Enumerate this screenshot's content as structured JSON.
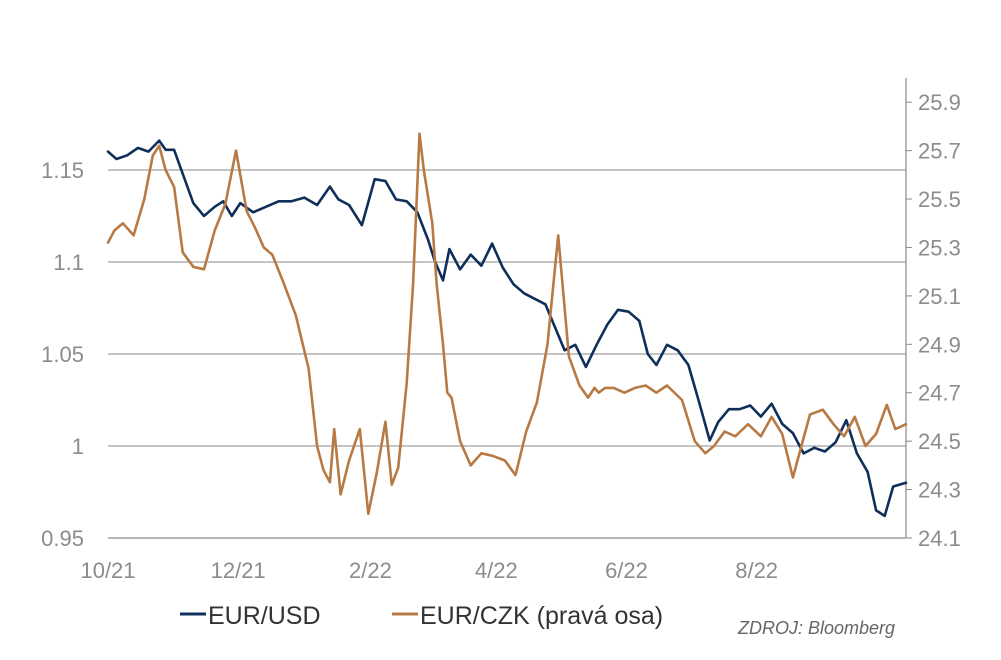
{
  "chart_data": {
    "type": "line",
    "title": "",
    "xlabel": "",
    "ylabel": "",
    "grid": "horizontal",
    "legend_placement": "bottom",
    "source": "ZDROJ: Bloomberg",
    "x_ticks": [
      "10/21",
      "12/21",
      "2/22",
      "4/22",
      "6/22",
      "8/22"
    ],
    "x_range": [
      "2021-10-01",
      "2022-10-10"
    ],
    "left_axis": {
      "ylim": [
        0.95,
        1.2
      ],
      "ticks": [
        0.95,
        1.0,
        1.05,
        1.1,
        1.15
      ],
      "tick_labels": [
        "0.95",
        "1",
        "1.05",
        "1.1",
        "1.15"
      ]
    },
    "right_axis": {
      "ylim": [
        24.1,
        26.0
      ],
      "ticks": [
        24.1,
        24.3,
        24.5,
        24.7,
        24.9,
        25.1,
        25.3,
        25.5,
        25.7,
        25.9
      ],
      "tick_labels": [
        "24.1",
        "24.3",
        "24.5",
        "24.7",
        "24.9",
        "25.1",
        "25.3",
        "25.5",
        "25.7",
        "25.9"
      ]
    },
    "series": [
      {
        "name": "EUR/USD",
        "axis": "left",
        "color": "#0f2f5a",
        "x": [
          "2021-10-01",
          "2021-10-05",
          "2021-10-10",
          "2021-10-15",
          "2021-10-20",
          "2021-10-25",
          "2021-10-28",
          "2021-11-01",
          "2021-11-05",
          "2021-11-10",
          "2021-11-15",
          "2021-11-20",
          "2021-11-24",
          "2021-11-28",
          "2021-12-02",
          "2021-12-08",
          "2021-12-14",
          "2021-12-20",
          "2021-12-26",
          "2022-01-01",
          "2022-01-07",
          "2022-01-13",
          "2022-01-17",
          "2022-01-22",
          "2022-01-28",
          "2022-02-03",
          "2022-02-08",
          "2022-02-13",
          "2022-02-18",
          "2022-02-23",
          "2022-02-28",
          "2022-03-03",
          "2022-03-07",
          "2022-03-10",
          "2022-03-15",
          "2022-03-20",
          "2022-03-25",
          "2022-03-30",
          "2022-04-04",
          "2022-04-09",
          "2022-04-14",
          "2022-04-19",
          "2022-04-24",
          "2022-04-28",
          "2022-05-03",
          "2022-05-08",
          "2022-05-13",
          "2022-05-18",
          "2022-05-23",
          "2022-05-28",
          "2022-06-02",
          "2022-06-07",
          "2022-06-11",
          "2022-06-15",
          "2022-06-20",
          "2022-06-25",
          "2022-06-30",
          "2022-07-05",
          "2022-07-10",
          "2022-07-14",
          "2022-07-19",
          "2022-07-24",
          "2022-07-29",
          "2022-08-03",
          "2022-08-08",
          "2022-08-13",
          "2022-08-18",
          "2022-08-23",
          "2022-08-28",
          "2022-09-02",
          "2022-09-07",
          "2022-09-12",
          "2022-09-17",
          "2022-09-22",
          "2022-09-26",
          "2022-09-30",
          "2022-10-04",
          "2022-10-10"
        ],
        "values": [
          1.16,
          1.156,
          1.158,
          1.162,
          1.16,
          1.166,
          1.161,
          1.161,
          1.148,
          1.132,
          1.125,
          1.13,
          1.133,
          1.125,
          1.132,
          1.127,
          1.13,
          1.133,
          1.133,
          1.135,
          1.131,
          1.141,
          1.134,
          1.131,
          1.12,
          1.145,
          1.144,
          1.134,
          1.133,
          1.127,
          1.112,
          1.101,
          1.09,
          1.107,
          1.096,
          1.104,
          1.098,
          1.11,
          1.097,
          1.088,
          1.083,
          1.08,
          1.077,
          1.066,
          1.052,
          1.055,
          1.043,
          1.055,
          1.066,
          1.074,
          1.073,
          1.068,
          1.05,
          1.044,
          1.055,
          1.052,
          1.044,
          1.024,
          1.003,
          1.013,
          1.02,
          1.02,
          1.022,
          1.016,
          1.023,
          1.012,
          1.007,
          0.996,
          0.999,
          0.997,
          1.002,
          1.014,
          0.996,
          0.986,
          0.965,
          0.962,
          0.978,
          0.98
        ]
      },
      {
        "name": "EUR/CZK (pravá osa)",
        "axis": "right",
        "color": "#b87a45",
        "x": [
          "2021-10-01",
          "2021-10-04",
          "2021-10-08",
          "2021-10-13",
          "2021-10-18",
          "2021-10-22",
          "2021-10-25",
          "2021-10-28",
          "2021-11-01",
          "2021-11-05",
          "2021-11-10",
          "2021-11-15",
          "2021-11-20",
          "2021-11-25",
          "2021-11-30",
          "2021-12-05",
          "2021-12-09",
          "2021-12-13",
          "2021-12-17",
          "2021-12-22",
          "2021-12-28",
          "2022-01-03",
          "2022-01-07",
          "2022-01-10",
          "2022-01-13",
          "2022-01-15",
          "2022-01-18",
          "2022-01-22",
          "2022-01-27",
          "2022-01-31",
          "2022-02-04",
          "2022-02-08",
          "2022-02-11",
          "2022-02-14",
          "2022-02-18",
          "2022-02-21",
          "2022-02-24",
          "2022-02-26",
          "2022-03-02",
          "2022-03-04",
          "2022-03-07",
          "2022-03-09",
          "2022-03-11",
          "2022-03-15",
          "2022-03-20",
          "2022-03-25",
          "2022-03-30",
          "2022-04-05",
          "2022-04-10",
          "2022-04-15",
          "2022-04-20",
          "2022-04-25",
          "2022-04-30",
          "2022-05-05",
          "2022-05-10",
          "2022-05-14",
          "2022-05-17",
          "2022-05-19",
          "2022-05-22",
          "2022-05-26",
          "2022-05-31",
          "2022-06-05",
          "2022-06-10",
          "2022-06-15",
          "2022-06-20",
          "2022-06-27",
          "2022-07-03",
          "2022-07-08",
          "2022-07-12",
          "2022-07-17",
          "2022-07-22",
          "2022-07-28",
          "2022-08-03",
          "2022-08-08",
          "2022-08-13",
          "2022-08-18",
          "2022-08-22",
          "2022-08-26",
          "2022-09-01",
          "2022-09-06",
          "2022-09-11",
          "2022-09-16",
          "2022-09-21",
          "2022-09-26",
          "2022-10-01",
          "2022-10-05",
          "2022-10-10"
        ],
        "values": [
          25.32,
          25.37,
          25.4,
          25.35,
          25.5,
          25.68,
          25.72,
          25.62,
          25.55,
          25.28,
          25.22,
          25.21,
          25.37,
          25.48,
          25.7,
          25.45,
          25.38,
          25.3,
          25.27,
          25.16,
          25.02,
          24.8,
          24.48,
          24.38,
          24.33,
          24.55,
          24.28,
          24.42,
          24.55,
          24.2,
          24.37,
          24.58,
          24.32,
          24.39,
          24.74,
          25.15,
          25.77,
          25.62,
          25.4,
          25.15,
          24.9,
          24.7,
          24.68,
          24.5,
          24.4,
          24.45,
          24.44,
          24.42,
          24.36,
          24.54,
          24.66,
          24.9,
          25.35,
          24.85,
          24.73,
          24.68,
          24.72,
          24.7,
          24.72,
          24.72,
          24.7,
          24.72,
          24.73,
          24.7,
          24.73,
          24.67,
          24.5,
          24.45,
          24.48,
          24.54,
          24.52,
          24.57,
          24.52,
          24.6,
          24.53,
          24.35,
          24.48,
          24.61,
          24.63,
          24.57,
          24.52,
          24.6,
          24.48,
          24.53,
          24.65,
          24.55,
          24.57
        ]
      }
    ]
  }
}
